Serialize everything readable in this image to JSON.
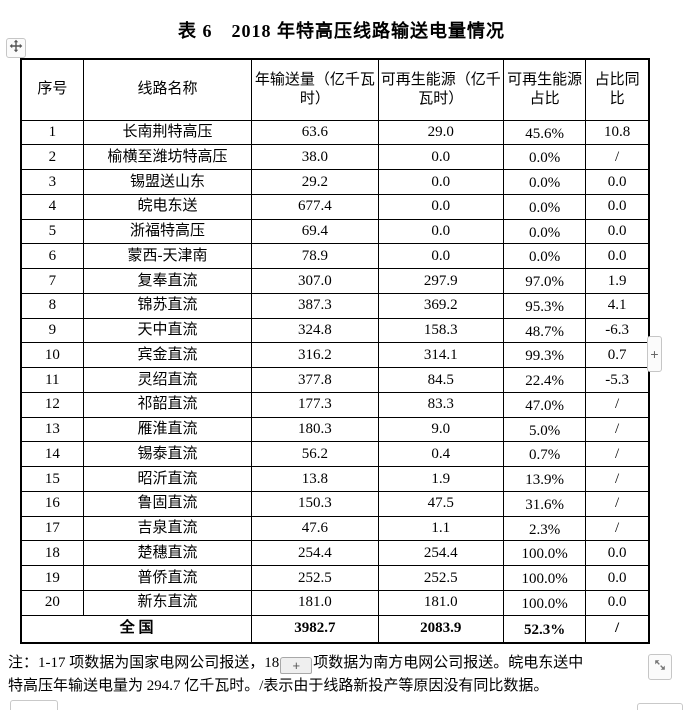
{
  "title": "表 6　2018 年特高压线路输送电量情况",
  "table": {
    "headers": [
      "序号",
      "线路名称",
      "年输送量（亿千瓦时）",
      "可再生能源（亿千瓦时）",
      "可再生能源占比",
      "占比同比"
    ],
    "rows": [
      [
        "1",
        "长南荆特高压",
        "63.6",
        "29.0",
        "45.6%",
        "10.8"
      ],
      [
        "2",
        "榆横至潍坊特高压",
        "38.0",
        "0.0",
        "0.0%",
        "/"
      ],
      [
        "3",
        "锡盟送山东",
        "29.2",
        "0.0",
        "0.0%",
        "0.0"
      ],
      [
        "4",
        "皖电东送",
        "677.4",
        "0.0",
        "0.0%",
        "0.0"
      ],
      [
        "5",
        "浙福特高压",
        "69.4",
        "0.0",
        "0.0%",
        "0.0"
      ],
      [
        "6",
        "蒙西-天津南",
        "78.9",
        "0.0",
        "0.0%",
        "0.0"
      ],
      [
        "7",
        "复奉直流",
        "307.0",
        "297.9",
        "97.0%",
        "1.9"
      ],
      [
        "8",
        "锦苏直流",
        "387.3",
        "369.2",
        "95.3%",
        "4.1"
      ],
      [
        "9",
        "天中直流",
        "324.8",
        "158.3",
        "48.7%",
        "-6.3"
      ],
      [
        "10",
        "宾金直流",
        "316.2",
        "314.1",
        "99.3%",
        "0.7"
      ],
      [
        "11",
        "灵绍直流",
        "377.8",
        "84.5",
        "22.4%",
        "-5.3"
      ],
      [
        "12",
        "祁韶直流",
        "177.3",
        "83.3",
        "47.0%",
        "/"
      ],
      [
        "13",
        "雁淮直流",
        "180.3",
        "9.0",
        "5.0%",
        "/"
      ],
      [
        "14",
        "锡泰直流",
        "56.2",
        "0.4",
        "0.7%",
        "/"
      ],
      [
        "15",
        "昭沂直流",
        "13.8",
        "1.9",
        "13.9%",
        "/"
      ],
      [
        "16",
        "鲁固直流",
        "150.3",
        "47.5",
        "31.6%",
        "/"
      ],
      [
        "17",
        "吉泉直流",
        "47.6",
        "1.1",
        "2.3%",
        "/"
      ],
      [
        "18",
        "楚穗直流",
        "254.4",
        "254.4",
        "100.0%",
        "0.0"
      ],
      [
        "19",
        "普侨直流",
        "252.5",
        "252.5",
        "100.0%",
        "0.0"
      ],
      [
        "20",
        "新东直流",
        "181.0",
        "181.0",
        "100.0%",
        "0.0"
      ]
    ],
    "total": {
      "label": "全  国",
      "values": [
        "3982.7",
        "2083.9",
        "52.3%",
        "/"
      ]
    }
  },
  "note": {
    "line1_prefix": "注：1-17 项数据为国家电网公司报送，18",
    "line1_suffix": "项数据为南方电网公司报送。皖电东送中",
    "line2": "特高压年输送电量为 294.7 亿千瓦时。/表示由于线路新投产等原因没有同比数据。"
  },
  "controls": {
    "insert_label": "+",
    "move_icon": "move-cross",
    "resize_icon": "diagonal-resize"
  },
  "colors": {
    "table_border": "#000000",
    "control_border": "#c6c6c6",
    "control_bg": "#fbfbfb",
    "control_glyph": "#666666"
  }
}
